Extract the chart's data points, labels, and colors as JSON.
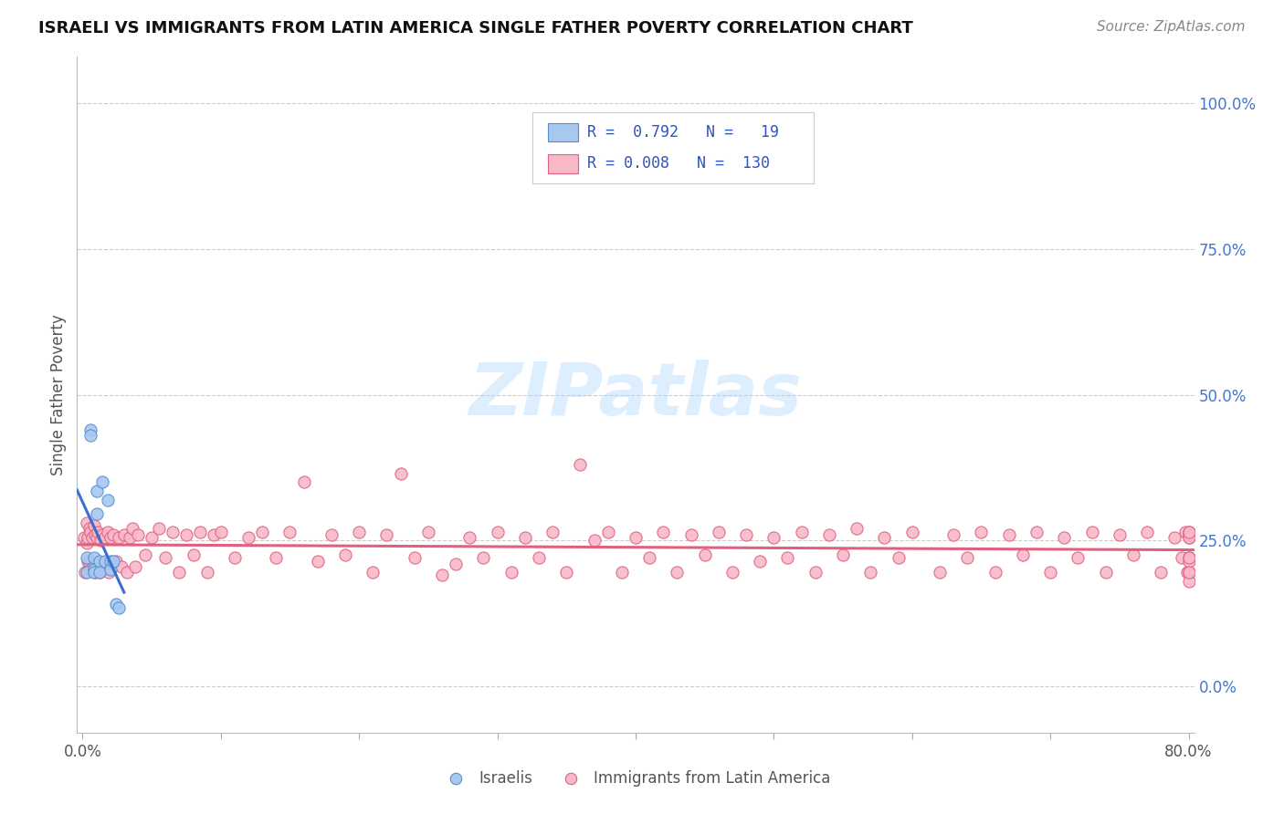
{
  "title": "ISRAELI VS IMMIGRANTS FROM LATIN AMERICA SINGLE FATHER POVERTY CORRELATION CHART",
  "source": "Source: ZipAtlas.com",
  "ylabel": "Single Father Poverty",
  "xlim": [
    -0.004,
    0.804
  ],
  "ylim": [
    -0.08,
    1.08
  ],
  "right_yticks": [
    0.0,
    0.25,
    0.5,
    0.75,
    1.0
  ],
  "right_yticklabels": [
    "0.0%",
    "25.0%",
    "50.0%",
    "75.0%",
    "100.0%"
  ],
  "xtick_vals": [
    0.0,
    0.1,
    0.2,
    0.3,
    0.4,
    0.5,
    0.6,
    0.7,
    0.8
  ],
  "xticklabels": [
    "0.0%",
    "",
    "",
    "",
    "",
    "",
    "",
    "",
    "80.0%"
  ],
  "legend_line1": "R =  0.792   N =   19",
  "legend_line2": "R = 0.008   N =  130",
  "color_israeli_fill": "#a8c8f0",
  "color_israeli_edge": "#5090d0",
  "color_latin_fill": "#f8b8c8",
  "color_latin_edge": "#e06080",
  "color_trend_israeli": "#3a6fd0",
  "color_trend_latin": "#e06080",
  "bg_color": "#ffffff",
  "grid_color": "#cccccc",
  "watermark_color": "#ddeeff",
  "israelis_x": [
    0.003,
    0.003,
    0.006,
    0.006,
    0.008,
    0.008,
    0.008,
    0.01,
    0.01,
    0.012,
    0.012,
    0.014,
    0.016,
    0.018,
    0.02,
    0.02,
    0.022,
    0.024,
    0.026
  ],
  "israelis_y": [
    0.22,
    0.195,
    0.44,
    0.43,
    0.2,
    0.22,
    0.195,
    0.335,
    0.295,
    0.215,
    0.195,
    0.35,
    0.215,
    0.32,
    0.215,
    0.2,
    0.215,
    0.14,
    0.135
  ],
  "latin_x": [
    0.001,
    0.002,
    0.003,
    0.003,
    0.004,
    0.004,
    0.005,
    0.005,
    0.006,
    0.006,
    0.007,
    0.008,
    0.008,
    0.009,
    0.009,
    0.01,
    0.011,
    0.012,
    0.013,
    0.014,
    0.015,
    0.016,
    0.017,
    0.018,
    0.019,
    0.02,
    0.022,
    0.024,
    0.026,
    0.028,
    0.03,
    0.032,
    0.034,
    0.036,
    0.038,
    0.04,
    0.045,
    0.05,
    0.055,
    0.06,
    0.065,
    0.07,
    0.075,
    0.08,
    0.085,
    0.09,
    0.095,
    0.1,
    0.11,
    0.12,
    0.13,
    0.14,
    0.15,
    0.16,
    0.17,
    0.18,
    0.19,
    0.2,
    0.21,
    0.22,
    0.23,
    0.24,
    0.25,
    0.26,
    0.27,
    0.28,
    0.29,
    0.3,
    0.31,
    0.32,
    0.33,
    0.34,
    0.35,
    0.36,
    0.37,
    0.38,
    0.39,
    0.4,
    0.41,
    0.42,
    0.43,
    0.44,
    0.45,
    0.46,
    0.47,
    0.48,
    0.49,
    0.5,
    0.51,
    0.52,
    0.53,
    0.54,
    0.55,
    0.56,
    0.57,
    0.58,
    0.59,
    0.6,
    0.62,
    0.63,
    0.64,
    0.65,
    0.66,
    0.67,
    0.68,
    0.69,
    0.7,
    0.71,
    0.72,
    0.73,
    0.74,
    0.75,
    0.76,
    0.77,
    0.78,
    0.79,
    0.795,
    0.798,
    0.799,
    0.8,
    0.8,
    0.8,
    0.8,
    0.8,
    0.8,
    0.8,
    0.8,
    0.8,
    0.8,
    0.8
  ],
  "latin_y": [
    0.255,
    0.195,
    0.28,
    0.245,
    0.255,
    0.215,
    0.27,
    0.21,
    0.265,
    0.2,
    0.255,
    0.275,
    0.205,
    0.26,
    0.195,
    0.255,
    0.265,
    0.195,
    0.25,
    0.26,
    0.2,
    0.255,
    0.21,
    0.265,
    0.195,
    0.255,
    0.26,
    0.215,
    0.255,
    0.205,
    0.26,
    0.195,
    0.255,
    0.27,
    0.205,
    0.26,
    0.225,
    0.255,
    0.27,
    0.22,
    0.265,
    0.195,
    0.26,
    0.225,
    0.265,
    0.195,
    0.26,
    0.265,
    0.22,
    0.255,
    0.265,
    0.22,
    0.265,
    0.35,
    0.215,
    0.26,
    0.225,
    0.265,
    0.195,
    0.26,
    0.365,
    0.22,
    0.265,
    0.19,
    0.21,
    0.255,
    0.22,
    0.265,
    0.195,
    0.255,
    0.22,
    0.265,
    0.195,
    0.38,
    0.25,
    0.265,
    0.195,
    0.255,
    0.22,
    0.265,
    0.195,
    0.26,
    0.225,
    0.265,
    0.195,
    0.26,
    0.215,
    0.255,
    0.22,
    0.265,
    0.195,
    0.26,
    0.225,
    0.27,
    0.195,
    0.255,
    0.22,
    0.265,
    0.195,
    0.26,
    0.22,
    0.265,
    0.195,
    0.26,
    0.225,
    0.265,
    0.195,
    0.255,
    0.22,
    0.265,
    0.195,
    0.26,
    0.225,
    0.265,
    0.195,
    0.255,
    0.22,
    0.265,
    0.195,
    0.255,
    0.22,
    0.265,
    0.195,
    0.26,
    0.18,
    0.255,
    0.215,
    0.22,
    0.265,
    0.195
  ]
}
